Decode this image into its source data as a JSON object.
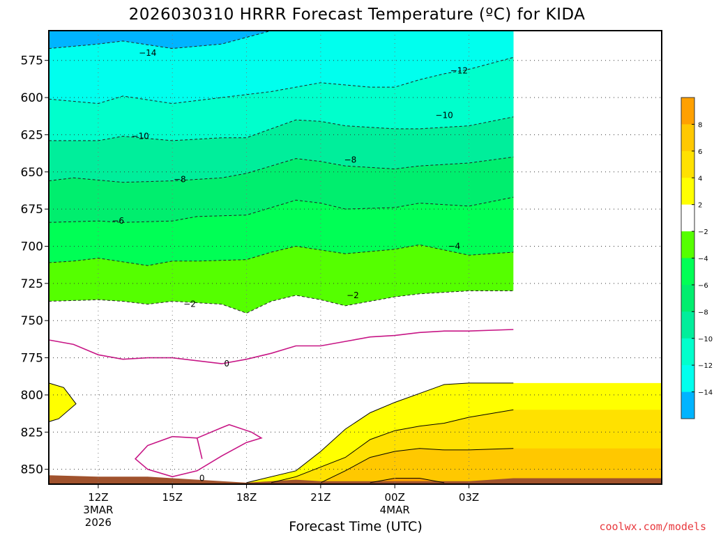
{
  "title": "2026030310 HRRR Forecast Temperature (ºC) for KIDA",
  "credit": "coolwx.com/models",
  "chart_data": {
    "type": "contour-fill",
    "title": "2026030310 HRRR Forecast Temperature (ºC) for KIDA",
    "xlabel": "Forecast Time (UTC)",
    "ylabel": "",
    "y_axis": "pressure (hPa), inverted",
    "ylim": [
      860,
      555
    ],
    "y_ticks": [
      575,
      600,
      625,
      650,
      675,
      700,
      725,
      750,
      775,
      800,
      825,
      850
    ],
    "xlim": [
      10,
      34.8
    ],
    "x_ticks": [
      {
        "hour": 12,
        "label": "12Z",
        "sub1": "3MAR",
        "sub2": "2026"
      },
      {
        "hour": 15,
        "label": "15Z",
        "sub1": "",
        "sub2": ""
      },
      {
        "hour": 18,
        "label": "18Z",
        "sub1": "",
        "sub2": ""
      },
      {
        "hour": 21,
        "label": "21Z",
        "sub1": "",
        "sub2": ""
      },
      {
        "hour": 24,
        "label": "00Z",
        "sub1": "4MAR",
        "sub2": ""
      },
      {
        "hour": 27,
        "label": "03Z",
        "sub1": "",
        "sub2": ""
      }
    ],
    "grid": "dotted",
    "colorbar": {
      "ticks": [
        "8",
        "6",
        "4",
        "2",
        "−2",
        "−4",
        "−6",
        "−8",
        "−10",
        "−12",
        "−14"
      ],
      "colors_top_to_bottom": [
        "#ffa000",
        "#ffc800",
        "#ffe100",
        "#ffff00",
        "#ffffff",
        "#55ff00",
        "#00ff55",
        "#00ee6e",
        "#00ee9b",
        "#00ffcc",
        "#00ffee",
        "#00b4ff"
      ]
    },
    "fill_levels": [
      {
        "range": "≤ -14",
        "color": "#00b4ff",
        "boundary": [
          [
            10,
            567
          ],
          [
            12,
            564
          ],
          [
            13,
            562
          ],
          [
            15,
            567
          ],
          [
            17,
            564
          ],
          [
            19,
            555
          ]
        ]
      },
      {
        "range": "-14 to -12",
        "color": "#00ffee",
        "boundary": [
          [
            10,
            601
          ],
          [
            12,
            604
          ],
          [
            13,
            599
          ],
          [
            15,
            604
          ],
          [
            17,
            600
          ],
          [
            19,
            596
          ],
          [
            21,
            590
          ],
          [
            23,
            593
          ],
          [
            24,
            593
          ],
          [
            25,
            588
          ],
          [
            26,
            584
          ],
          [
            27,
            581
          ],
          [
            28.8,
            573
          ]
        ]
      },
      {
        "range": "-12 to -10",
        "color": "#00ffcc",
        "boundary": [
          [
            10,
            629
          ],
          [
            12,
            629
          ],
          [
            13,
            626
          ],
          [
            15,
            629
          ],
          [
            17,
            627
          ],
          [
            18,
            627
          ],
          [
            20,
            615
          ],
          [
            21,
            616
          ],
          [
            22,
            619
          ],
          [
            24,
            621
          ],
          [
            25,
            621
          ],
          [
            27,
            619
          ],
          [
            28.8,
            613
          ]
        ]
      },
      {
        "range": "-10 to -8",
        "color": "#00ee9b",
        "boundary": [
          [
            10,
            656
          ],
          [
            11,
            654
          ],
          [
            13,
            657
          ],
          [
            15,
            656
          ],
          [
            17,
            654
          ],
          [
            18,
            651
          ],
          [
            20,
            641
          ],
          [
            21,
            643
          ],
          [
            22,
            646
          ],
          [
            24,
            648
          ],
          [
            25,
            646
          ],
          [
            27,
            644
          ],
          [
            28.8,
            640
          ]
        ]
      },
      {
        "range": "-8 to -6",
        "color": "#00ee6e",
        "boundary": [
          [
            10,
            684
          ],
          [
            12,
            683
          ],
          [
            13,
            684
          ],
          [
            15,
            683
          ],
          [
            16,
            680
          ],
          [
            18,
            679
          ],
          [
            20,
            669
          ],
          [
            21,
            671
          ],
          [
            22,
            675
          ],
          [
            24,
            674
          ],
          [
            25,
            671
          ],
          [
            27,
            673
          ],
          [
            28.8,
            667
          ]
        ]
      },
      {
        "range": "-6 to -4",
        "color": "#00ff55",
        "boundary": [
          [
            10,
            711
          ],
          [
            11,
            710
          ],
          [
            12,
            708
          ],
          [
            14,
            713
          ],
          [
            15,
            710
          ],
          [
            16,
            710
          ],
          [
            18,
            709
          ],
          [
            19,
            704
          ],
          [
            20,
            700
          ],
          [
            22,
            705
          ],
          [
            24,
            702
          ],
          [
            25,
            699
          ],
          [
            27,
            706
          ],
          [
            28.8,
            704
          ]
        ]
      },
      {
        "range": "-4 to -2",
        "color": "#55ff00",
        "boundary": [
          [
            10,
            737
          ],
          [
            12,
            736
          ],
          [
            13,
            737
          ],
          [
            14,
            739
          ],
          [
            15,
            737
          ],
          [
            17,
            739
          ],
          [
            18,
            745
          ],
          [
            19,
            737
          ],
          [
            20,
            733
          ],
          [
            21,
            736
          ],
          [
            22,
            740
          ],
          [
            23,
            737
          ],
          [
            24,
            734
          ],
          [
            25,
            732
          ],
          [
            27,
            730
          ],
          [
            28.8,
            730
          ]
        ]
      },
      {
        "range": "-2 to 2",
        "color": "#ffffff",
        "boundary": []
      },
      {
        "range": "2 to 4",
        "color": "#ffff00",
        "boundary": [
          [
            18,
            859
          ],
          [
            20,
            851
          ],
          [
            21,
            838
          ],
          [
            22,
            823
          ],
          [
            23,
            812
          ],
          [
            24,
            805
          ],
          [
            25,
            799
          ],
          [
            26,
            793
          ],
          [
            27,
            792
          ],
          [
            28.8,
            792
          ]
        ]
      },
      {
        "range": "4 to 6",
        "color": "#ffe100",
        "boundary": [
          [
            19,
            859
          ],
          [
            20,
            855
          ],
          [
            22,
            842
          ],
          [
            23,
            830
          ],
          [
            24,
            824
          ],
          [
            25,
            821
          ],
          [
            26,
            819
          ],
          [
            27,
            815
          ],
          [
            28.8,
            810
          ]
        ]
      },
      {
        "range": "6 to 8",
        "color": "#ffc800",
        "boundary": [
          [
            21,
            859
          ],
          [
            22,
            851
          ],
          [
            23,
            842
          ],
          [
            24,
            838
          ],
          [
            25,
            836
          ],
          [
            26,
            837
          ],
          [
            27,
            837
          ],
          [
            28.8,
            836
          ]
        ]
      },
      {
        "range": "> 8",
        "color": "#ffa000",
        "boundary": [
          [
            23,
            859
          ],
          [
            24,
            856
          ],
          [
            25,
            856
          ],
          [
            26,
            859
          ]
        ]
      }
    ],
    "zero_isotherm_upper": [
      [
        10,
        763
      ],
      [
        11,
        766
      ],
      [
        12,
        773
      ],
      [
        13,
        776
      ],
      [
        14,
        775
      ],
      [
        15,
        775
      ],
      [
        17,
        779
      ],
      [
        18,
        776
      ],
      [
        19,
        772
      ],
      [
        20,
        767
      ],
      [
        21,
        767
      ],
      [
        22,
        764
      ],
      [
        23,
        761
      ],
      [
        24,
        760
      ],
      [
        25,
        758
      ],
      [
        26,
        757
      ],
      [
        27,
        757
      ],
      [
        28.8,
        756
      ]
    ],
    "zero_isotherm_lower": [
      [
        16.2,
        843
      ],
      [
        16,
        829
      ],
      [
        17,
        822
      ],
      [
        17.3,
        820
      ],
      [
        18.2,
        825
      ],
      [
        18.6,
        829
      ],
      [
        18,
        832
      ],
      [
        17,
        841
      ],
      [
        16,
        851
      ],
      [
        15,
        855
      ],
      [
        14,
        850
      ],
      [
        13.5,
        843
      ],
      [
        14,
        834
      ],
      [
        15,
        828
      ],
      [
        16,
        829
      ]
    ],
    "freezing_pocket_left": [
      [
        10,
        792
      ],
      [
        10.6,
        795
      ],
      [
        11.1,
        806
      ],
      [
        10.4,
        816
      ],
      [
        10,
        818
      ]
    ],
    "contour_labels": [
      {
        "text": "−14",
        "hour": 14,
        "p": 570
      },
      {
        "text": "−12",
        "hour": 26.6,
        "p": 582
      },
      {
        "text": "−10",
        "hour": 26,
        "p": 612
      },
      {
        "text": "−10",
        "hour": 13.7,
        "p": 626
      },
      {
        "text": "−8",
        "hour": 22.2,
        "p": 642
      },
      {
        "text": "−8",
        "hour": 15.3,
        "p": 655
      },
      {
        "text": "−6",
        "hour": 12.8,
        "p": 683
      },
      {
        "text": "−4",
        "hour": 26.4,
        "p": 700
      },
      {
        "text": "−2",
        "hour": 22.3,
        "p": 733
      },
      {
        "text": "−2",
        "hour": 15.7,
        "p": 739
      },
      {
        "text": "0",
        "hour": 17.2,
        "p": 779
      },
      {
        "text": "0",
        "hour": 16.2,
        "p": 856
      }
    ],
    "terrain_top": [
      [
        10,
        854
      ],
      [
        12,
        855
      ],
      [
        14,
        855
      ],
      [
        15,
        856
      ],
      [
        16,
        857
      ],
      [
        17,
        858
      ],
      [
        18,
        859
      ],
      [
        19,
        858
      ],
      [
        20,
        857
      ],
      [
        21,
        858
      ],
      [
        24,
        858
      ],
      [
        27,
        858
      ],
      [
        28.8,
        856
      ]
    ]
  }
}
